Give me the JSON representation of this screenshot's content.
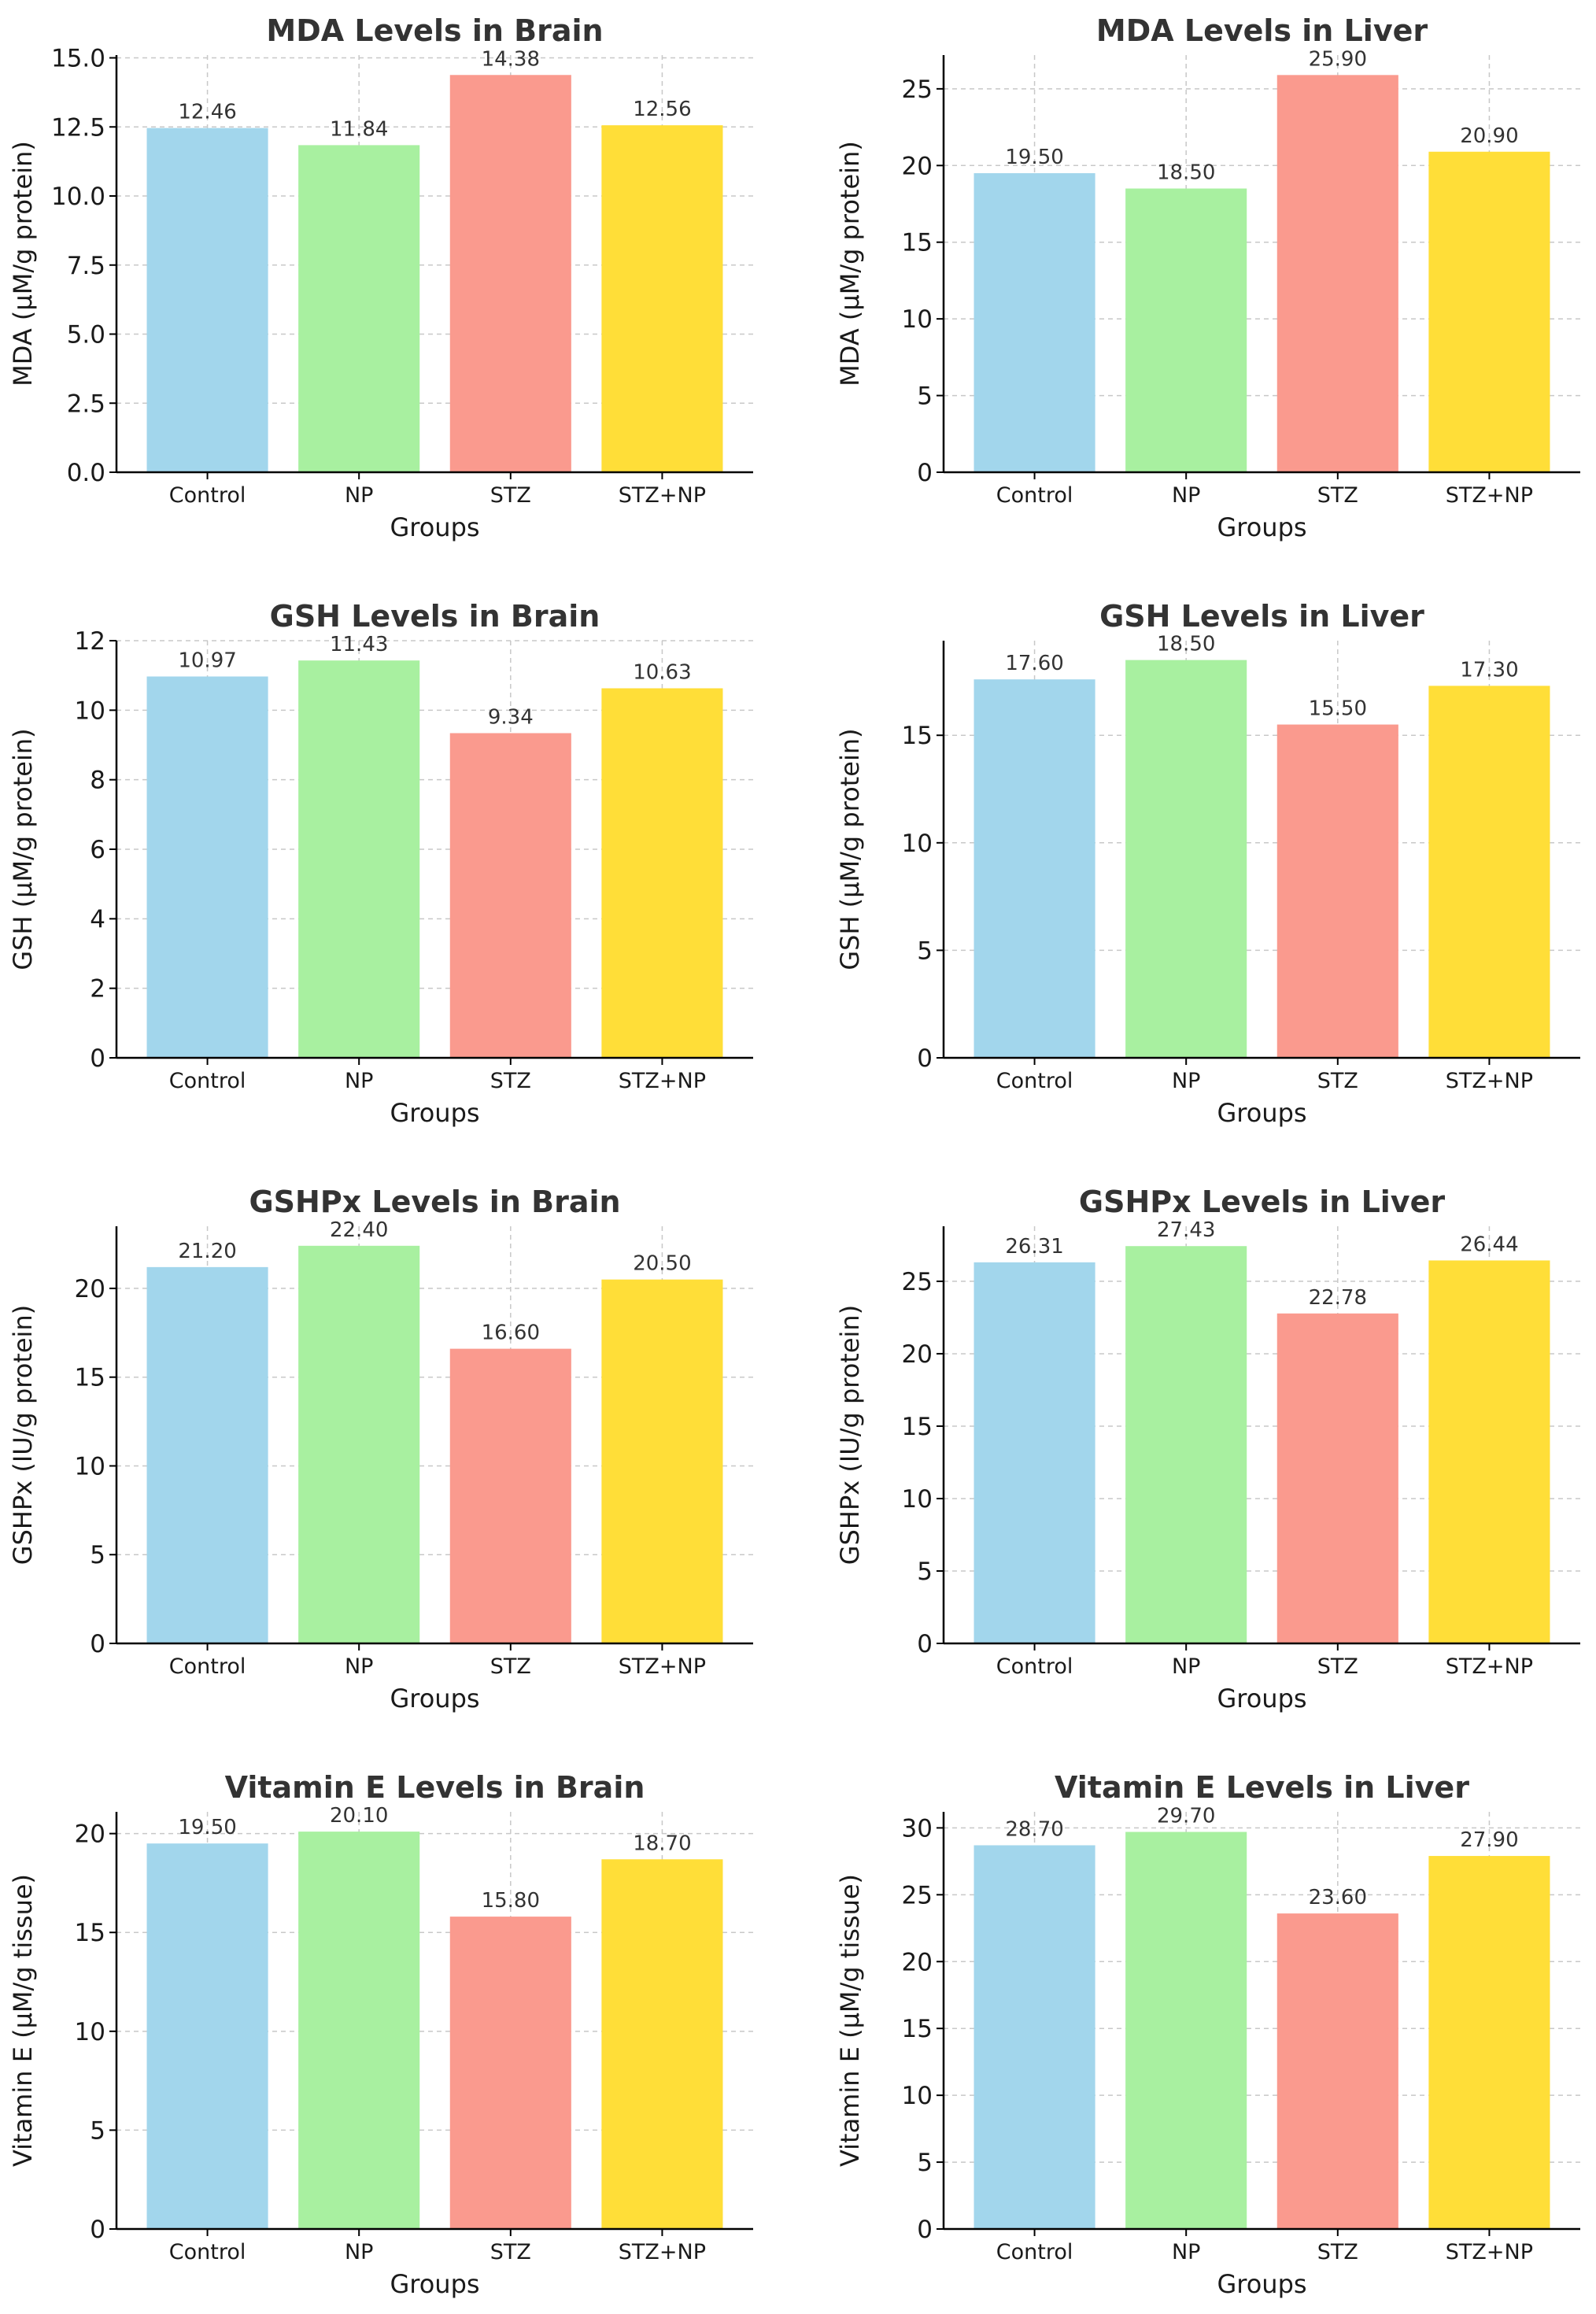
{
  "chart_data": [
    {
      "type": "bar",
      "title": "MDA Levels in Brain",
      "xlabel": "Groups",
      "ylabel": "MDA (µM/g protein)",
      "categories": [
        "Control",
        "NP",
        "STZ",
        "STZ+NP"
      ],
      "values": [
        12.46,
        11.84,
        14.38,
        12.56
      ],
      "value_labels": [
        "12.46",
        "11.84",
        "14.38",
        "12.56"
      ],
      "colors": [
        "#a2d6ec",
        "#a8f0a0",
        "#fa9a8e",
        "#ffde38"
      ],
      "ylim": [
        0,
        15.1
      ],
      "yticks": [
        0,
        2.5,
        5,
        7.5,
        10,
        12.5,
        15
      ],
      "ytick_labels": [
        "0.0",
        "2.5",
        "5.0",
        "7.5",
        "10.0",
        "12.5",
        "15.0"
      ],
      "grid": true
    },
    {
      "type": "bar",
      "title": "MDA Levels in Liver",
      "xlabel": "Groups",
      "ylabel": "MDA (µM/g protein)",
      "categories": [
        "Control",
        "NP",
        "STZ",
        "STZ+NP"
      ],
      "values": [
        19.5,
        18.5,
        25.9,
        20.9
      ],
      "value_labels": [
        "19.50",
        "18.50",
        "25.90",
        "20.90"
      ],
      "colors": [
        "#a2d6ec",
        "#a8f0a0",
        "#fa9a8e",
        "#ffde38"
      ],
      "ylim": [
        0,
        27.2
      ],
      "yticks": [
        0,
        5,
        10,
        15,
        20,
        25
      ],
      "ytick_labels": [
        "0",
        "5",
        "10",
        "15",
        "20",
        "25"
      ],
      "grid": true
    },
    {
      "type": "bar",
      "title": "GSH Levels in Brain",
      "xlabel": "Groups",
      "ylabel": "GSH (µM/g protein)",
      "categories": [
        "Control",
        "NP",
        "STZ",
        "STZ+NP"
      ],
      "values": [
        10.97,
        11.43,
        9.34,
        10.63
      ],
      "value_labels": [
        "10.97",
        "11.43",
        "9.34",
        "10.63"
      ],
      "colors": [
        "#a2d6ec",
        "#a8f0a0",
        "#fa9a8e",
        "#ffde38"
      ],
      "ylim": [
        0,
        12
      ],
      "yticks": [
        0,
        2,
        4,
        6,
        8,
        10,
        12
      ],
      "ytick_labels": [
        "0",
        "2",
        "4",
        "6",
        "8",
        "10",
        "12"
      ],
      "grid": true
    },
    {
      "type": "bar",
      "title": "GSH Levels in Liver",
      "xlabel": "Groups",
      "ylabel": "GSH (µM/g protein)",
      "categories": [
        "Control",
        "NP",
        "STZ",
        "STZ+NP"
      ],
      "values": [
        17.6,
        18.5,
        15.5,
        17.3
      ],
      "value_labels": [
        "17.60",
        "18.50",
        "15.50",
        "17.30"
      ],
      "colors": [
        "#a2d6ec",
        "#a8f0a0",
        "#fa9a8e",
        "#ffde38"
      ],
      "ylim": [
        0,
        19.4
      ],
      "yticks": [
        0,
        5,
        10,
        15
      ],
      "ytick_labels": [
        "0",
        "5",
        "10",
        "15"
      ],
      "grid": true
    },
    {
      "type": "bar",
      "title": "GSHPx Levels in Brain",
      "xlabel": "Groups",
      "ylabel": "GSHPx (IU/g protein)",
      "categories": [
        "Control",
        "NP",
        "STZ",
        "STZ+NP"
      ],
      "values": [
        21.2,
        22.4,
        16.6,
        20.5
      ],
      "value_labels": [
        "21.20",
        "22.40",
        "16.60",
        "20.50"
      ],
      "colors": [
        "#a2d6ec",
        "#a8f0a0",
        "#fa9a8e",
        "#ffde38"
      ],
      "ylim": [
        0,
        23.5
      ],
      "yticks": [
        0,
        5,
        10,
        15,
        20
      ],
      "ytick_labels": [
        "0",
        "5",
        "10",
        "15",
        "20"
      ],
      "grid": true
    },
    {
      "type": "bar",
      "title": "GSHPx Levels in Liver",
      "xlabel": "Groups",
      "ylabel": "GSHPx (IU/g protein)",
      "categories": [
        "Control",
        "NP",
        "STZ",
        "STZ+NP"
      ],
      "values": [
        26.31,
        27.43,
        22.78,
        26.44
      ],
      "value_labels": [
        "26.31",
        "27.43",
        "22.78",
        "26.44"
      ],
      "colors": [
        "#a2d6ec",
        "#a8f0a0",
        "#fa9a8e",
        "#ffde38"
      ],
      "ylim": [
        0,
        28.8
      ],
      "yticks": [
        0,
        5,
        10,
        15,
        20,
        25
      ],
      "ytick_labels": [
        "0",
        "5",
        "10",
        "15",
        "20",
        "25"
      ],
      "grid": true
    },
    {
      "type": "bar",
      "title": "Vitamin E Levels in Brain",
      "xlabel": "Groups",
      "ylabel": "Vitamin E (µM/g tissue)",
      "categories": [
        "Control",
        "NP",
        "STZ",
        "STZ+NP"
      ],
      "values": [
        19.5,
        20.1,
        15.8,
        18.7
      ],
      "value_labels": [
        "19.50",
        "20.10",
        "15.80",
        "18.70"
      ],
      "colors": [
        "#a2d6ec",
        "#a8f0a0",
        "#fa9a8e",
        "#ffde38"
      ],
      "ylim": [
        0,
        21.1
      ],
      "yticks": [
        0,
        5,
        10,
        15,
        20
      ],
      "ytick_labels": [
        "0",
        "5",
        "10",
        "15",
        "20"
      ],
      "grid": true
    },
    {
      "type": "bar",
      "title": "Vitamin E Levels in Liver",
      "xlabel": "Groups",
      "ylabel": "Vitamin E (µM/g tissue)",
      "categories": [
        "Control",
        "NP",
        "STZ",
        "STZ+NP"
      ],
      "values": [
        28.7,
        29.7,
        23.6,
        27.9
      ],
      "value_labels": [
        "28.70",
        "29.70",
        "23.60",
        "27.90"
      ],
      "colors": [
        "#a2d6ec",
        "#a8f0a0",
        "#fa9a8e",
        "#ffde38"
      ],
      "ylim": [
        0,
        31.2
      ],
      "yticks": [
        0,
        5,
        10,
        15,
        20,
        25,
        30
      ],
      "ytick_labels": [
        "0",
        "5",
        "10",
        "15",
        "20",
        "25",
        "30"
      ],
      "grid": true
    }
  ]
}
